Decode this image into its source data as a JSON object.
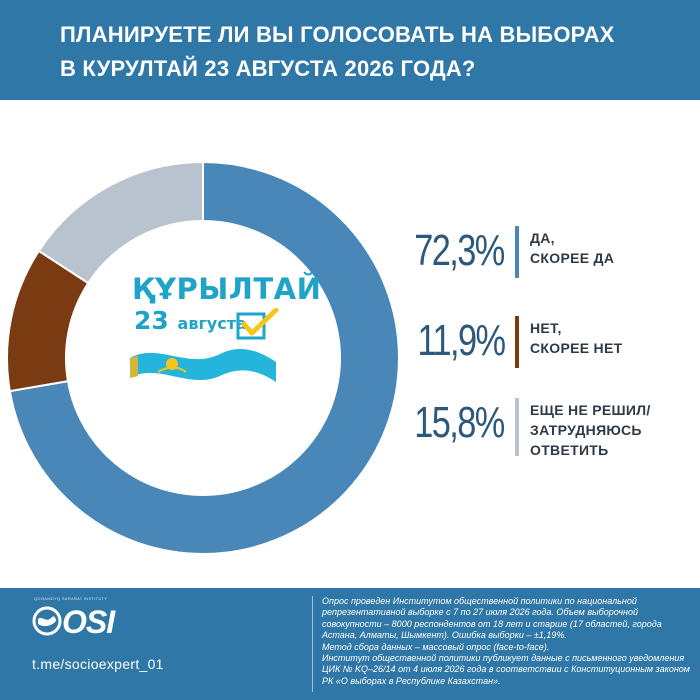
{
  "header": {
    "title_line1": "ПЛАНИРУЕТЕ ЛИ ВЫ ГОЛОСОВАТЬ НА ВЫБОРАХ",
    "title_line2": "В КУРУЛТАЙ 23 АВГУСТА 2026 ГОДА?"
  },
  "logo": {
    "word": "ҚҰРЫЛТАЙ",
    "day": "23",
    "month": "августа"
  },
  "chart_data": {
    "type": "pie",
    "title": "ПЛАНИРУЕТЕ ЛИ ВЫ ГОЛОСОВАТЬ НА ВЫБОРАХ В КУРУЛТАЙ 23 АВГУСТА 2026 ГОДА?",
    "donut": true,
    "slices": [
      {
        "value": 72.3,
        "label_pct": "72,3%",
        "label_line1": "ДА,",
        "label_line2": "СКОРЕЕ ДА",
        "label_line3": "",
        "color": "#4a87b9"
      },
      {
        "value": 11.9,
        "label_pct": "11,9%",
        "label_line1": "НЕТ,",
        "label_line2": "СКОРЕЕ НЕТ",
        "label_line3": "",
        "color": "#7a3b12"
      },
      {
        "value": 15.8,
        "label_pct": "15,8%",
        "label_line1": "ЕЩЕ НЕ РЕШИЛ/",
        "label_line2": "ЗАТРУДНЯЮСЬ",
        "label_line3": "ОТВЕТИТЬ",
        "color": "#b9c2cf"
      }
    ],
    "legend_position": "right"
  },
  "footer": {
    "osi_small": "QOGAMDYQ SARAÑAT INSTITUTY",
    "osi_word": "OSI",
    "telegram": "t.me/socioexpert_01",
    "note_p1": "Опрос проведен Институтом общественной политики по национальной репрезентативной выборке с 7 по 27 июля 2026 года. Объем выборочной совокупности – 8000 респондентов от 18 лет и старше (17 областей, города Астана, Алматы, Шымкент). Ошибка выборки – ±1,19%.",
    "note_p2": "Метод сбора данных – массовый опрос (face-to-face).",
    "note_p3": "Институт общественной политики публикует данные с письменного уведомления ЦИК № KQ–26/14 от 4 июля 2026 года в соответствии с Конституционным законом РК «О выборах в Республике Казахстан»."
  }
}
